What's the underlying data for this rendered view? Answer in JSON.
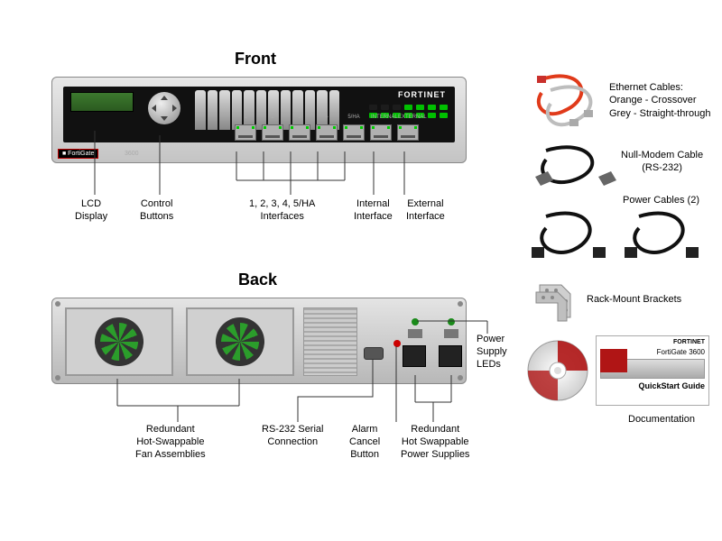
{
  "titles": {
    "front": "Front",
    "back": "Back"
  },
  "brand_text": "FORTINET",
  "badge_text": "■ FortiGate",
  "model_number": "3600",
  "port_numbers": [
    "1",
    "2",
    "3",
    "4",
    "5/HA",
    "INTERNAL",
    "EXTERNAL"
  ],
  "status_led_rows": [
    [
      "#1c1c1c",
      "#1c1c1c",
      "#1c1c1c",
      "#00c000",
      "#00c000",
      "#00c000",
      "#00c000"
    ],
    [
      "#00c000",
      "#00c000",
      "#00c000",
      "#00c000",
      "#00c000",
      "#00c000",
      "#00c000"
    ]
  ],
  "colors": {
    "device_face": "#111111",
    "lcd": "#2b5a20",
    "fan_blade": "#2b9d2b",
    "ethernet_orange": "#e03a1a",
    "ethernet_grey": "#bdbdbd",
    "nullmodem": "#111111",
    "power_cable": "#111111",
    "psu_led": "#1a8a1a",
    "alarm": "#cc0000",
    "bracket": "#bfbfbf",
    "cd_red": "#b01515",
    "callout_line": "#333333"
  },
  "front_callouts": {
    "lcd": "LCD\nDisplay",
    "control": "Control\nButtons",
    "interfaces": "1, 2, 3, 4, 5/HA\nInterfaces",
    "internal": "Internal\nInterface",
    "external": "External\nInterface"
  },
  "back_callouts": {
    "fans": "Redundant\nHot-Swappable\nFan Assemblies",
    "rs232": "RS-232 Serial\nConnection",
    "alarm": "Alarm\nCancel\nButton",
    "psu": "Redundant\nHot Swappable\nPower Supplies",
    "psu_leds": "Power\nSupply\nLEDs"
  },
  "accessories": {
    "ethernet": "Ethernet Cables:\nOrange - Crossover\nGrey - Straight-through",
    "nullmodem": "Null-Modem Cable\n(RS-232)",
    "power": "Power Cables (2)",
    "brackets": "Rack-Mount Brackets",
    "docs": "Documentation",
    "guide_title": "FortiGate 3600",
    "guide_sub": "QuickStart Guide"
  }
}
